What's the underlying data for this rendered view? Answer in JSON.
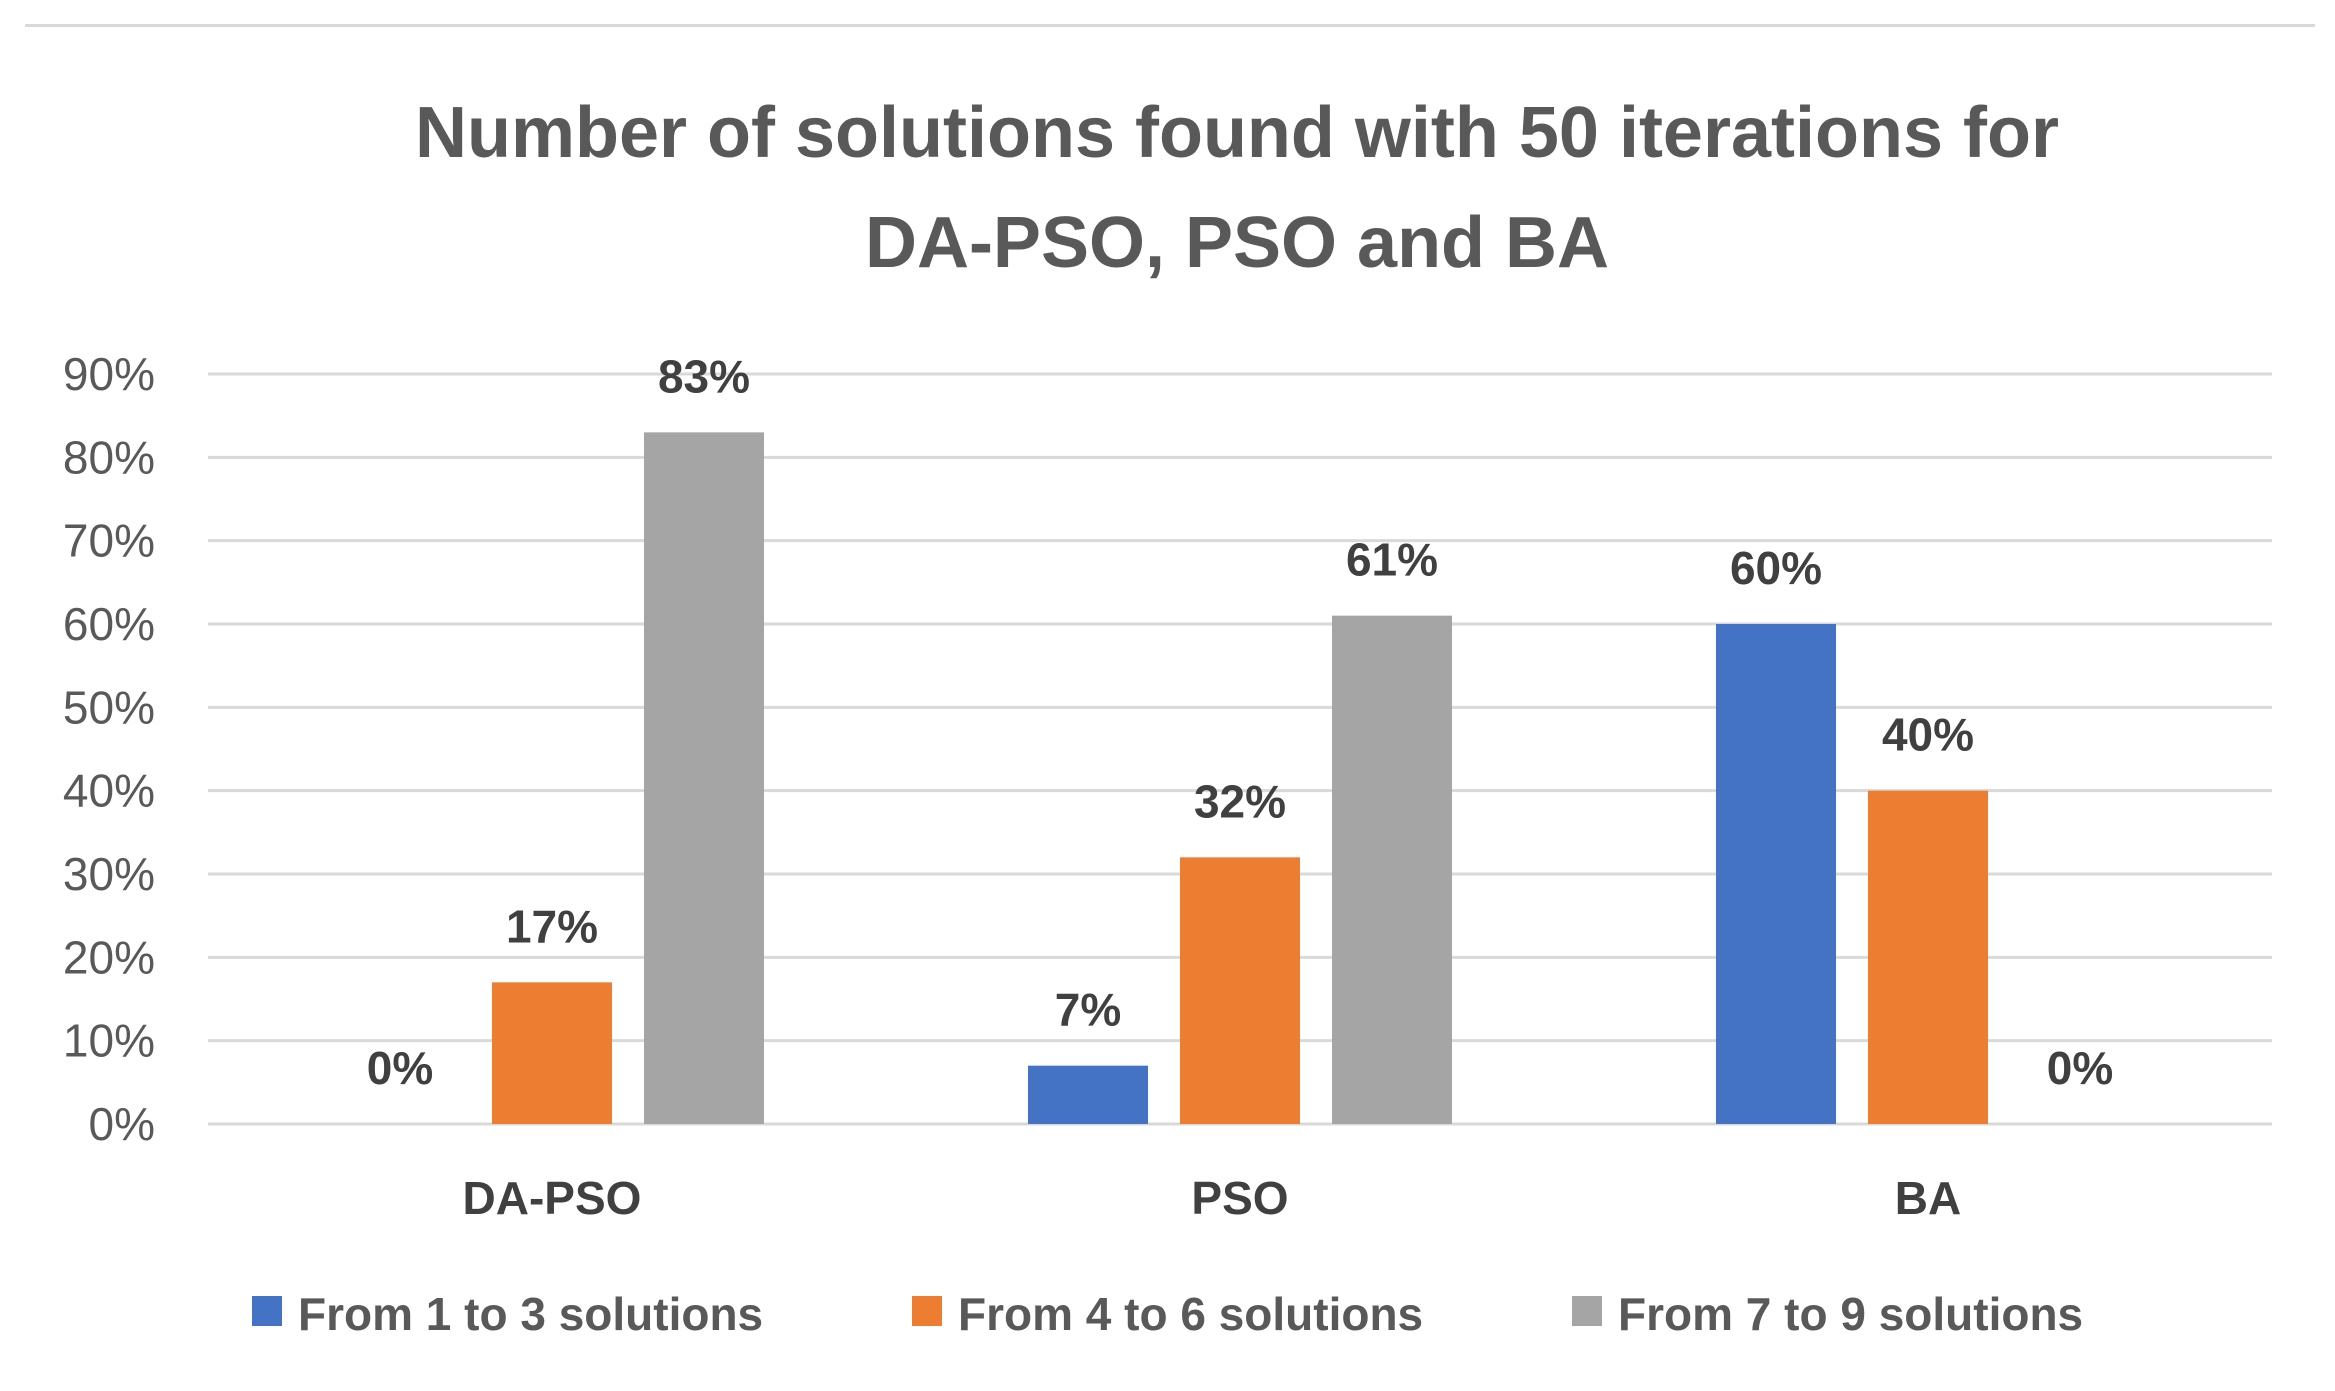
{
  "chart_data": {
    "type": "bar",
    "title_lines": [
      "Number of solutions found with 50 iterations for",
      "DA-PSO, PSO and BA"
    ],
    "categories": [
      "DA-PSO",
      "PSO",
      "BA"
    ],
    "series": [
      {
        "name": "From 1 to 3 solutions",
        "values": [
          0,
          7,
          60
        ],
        "labels": [
          "0%",
          "7%",
          "60%"
        ],
        "color": "#4472c4"
      },
      {
        "name": "From 4 to 6 solutions",
        "values": [
          17,
          32,
          40
        ],
        "labels": [
          "17%",
          "32%",
          "40%"
        ],
        "color": "#ed7d31"
      },
      {
        "name": "From 7 to 9 solutions",
        "values": [
          83,
          61,
          0
        ],
        "labels": [
          "83%",
          "61%",
          "0%"
        ],
        "color": "#a5a5a5"
      }
    ],
    "ylim": [
      0,
      90
    ],
    "y_ticks": [
      {
        "value": 0,
        "label": "0%"
      },
      {
        "value": 10,
        "label": "10%"
      },
      {
        "value": 20,
        "label": "20%"
      },
      {
        "value": 30,
        "label": "30%"
      },
      {
        "value": 40,
        "label": "40%"
      },
      {
        "value": 50,
        "label": "50%"
      },
      {
        "value": 60,
        "label": "60%"
      },
      {
        "value": 70,
        "label": "70%"
      },
      {
        "value": 80,
        "label": "80%"
      },
      {
        "value": 90,
        "label": "90%"
      }
    ],
    "grid": true,
    "legend_position": "bottom",
    "gridline_color": "#d9d9d9"
  }
}
